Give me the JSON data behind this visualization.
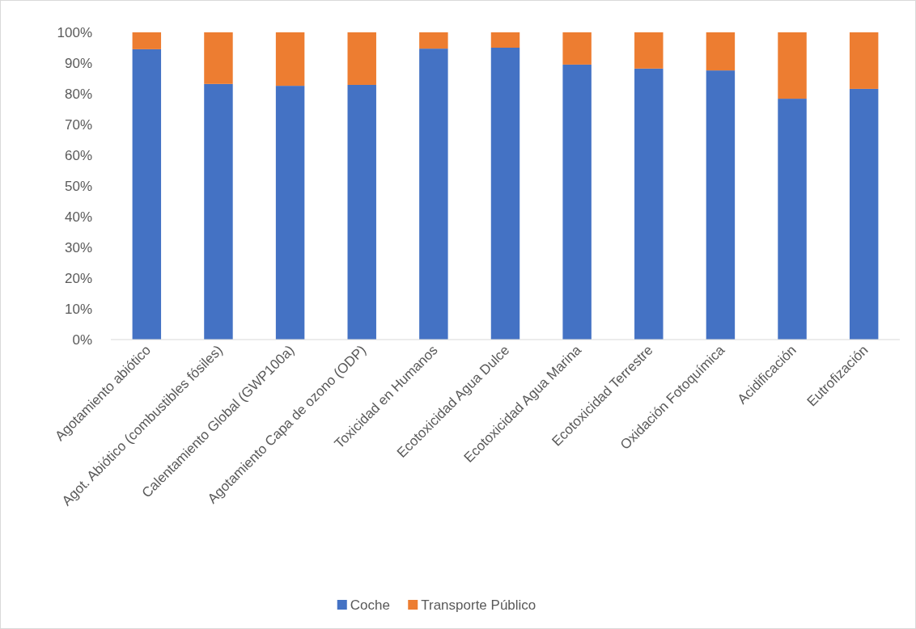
{
  "chart_data": {
    "type": "bar",
    "stacked": true,
    "categories": [
      "Agotamiento abiótico",
      "Agot. Abiótico (combustibles fósiles)",
      "Calentamiento Global (GWP100a)",
      "Agotamiento Capa de ozono (ODP)",
      "Toxicidad en Humanos",
      "Ecotoxicidad Agua Dulce",
      "Ecotoxicidad Agua Marina",
      "Ecotoxicidad Terrestre",
      "Oxidación Fotoquímica",
      "Acidificación",
      "Eutrofización"
    ],
    "series": [
      {
        "name": "Coche",
        "color": "#4472c4",
        "values": [
          94.5,
          83.2,
          82.6,
          82.9,
          94.7,
          95.0,
          89.5,
          88.2,
          87.6,
          78.4,
          81.6
        ]
      },
      {
        "name": "Transporte Público",
        "color": "#ed7d31",
        "values": [
          5.5,
          16.8,
          17.4,
          17.1,
          5.3,
          5.0,
          10.5,
          11.8,
          12.4,
          21.6,
          18.4
        ]
      }
    ],
    "ylim": [
      0,
      100
    ],
    "yticks": [
      {
        "value": 0,
        "label": "0%"
      },
      {
        "value": 10,
        "label": "10%"
      },
      {
        "value": 20,
        "label": "20%"
      },
      {
        "value": 30,
        "label": "30%"
      },
      {
        "value": 40,
        "label": "40%"
      },
      {
        "value": 50,
        "label": "50%"
      },
      {
        "value": 60,
        "label": "60%"
      },
      {
        "value": 70,
        "label": "70%"
      },
      {
        "value": 80,
        "label": "80%"
      },
      {
        "value": 90,
        "label": "90%"
      },
      {
        "value": 100,
        "label": "100%"
      }
    ],
    "grid": false,
    "legend": "bottom"
  }
}
